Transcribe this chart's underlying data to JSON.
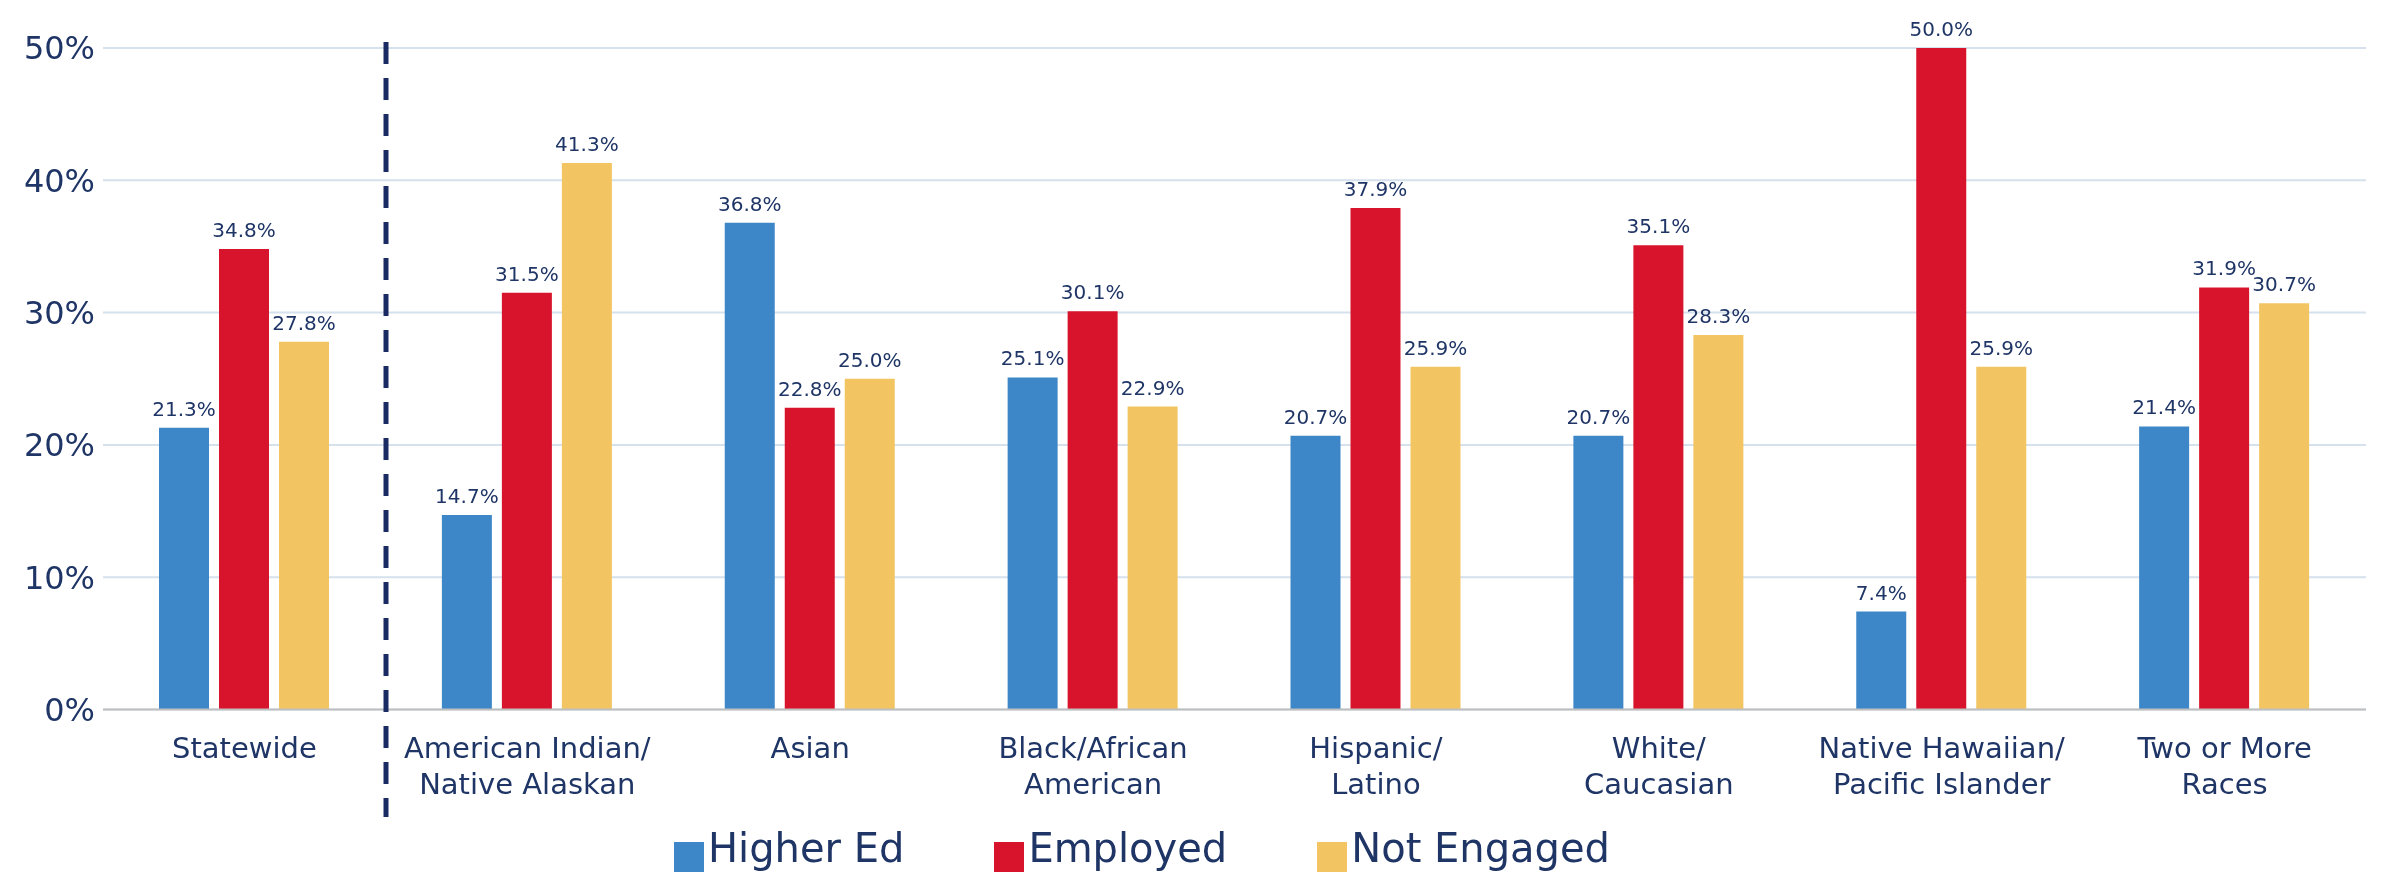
{
  "chart_data": {
    "type": "bar",
    "categories": [
      "Statewide",
      "American Indian/\nNative Alaskan",
      "Asian",
      "Black/African\nAmerican",
      "Hispanic/\nLatino",
      "White/\nCaucasian",
      "Native Hawaiian/\nPacific Islander",
      "Two or More\nRaces"
    ],
    "series": [
      {
        "name": "Higher Ed",
        "color": "#3d87c8",
        "values": [
          21.3,
          14.7,
          36.8,
          25.1,
          20.7,
          20.7,
          7.4,
          21.4
        ],
        "value_labels": [
          "21.3%",
          "14.7%",
          "36.8%",
          "25.1%",
          "20.7%",
          "20.7%",
          "7.4%",
          "21.4%"
        ]
      },
      {
        "name": "Employed",
        "color": "#d7142b",
        "values": [
          34.8,
          31.5,
          22.8,
          30.1,
          37.9,
          35.1,
          50.0,
          31.9
        ],
        "value_labels": [
          "34.8%",
          "31.5%",
          "22.8%",
          "30.1%",
          "37.9%",
          "35.1%",
          "50.0%",
          "31.9%"
        ]
      },
      {
        "name": "Not Engaged",
        "color": "#f2c562",
        "values": [
          27.8,
          41.3,
          25.0,
          22.9,
          25.9,
          28.3,
          25.9,
          30.7
        ],
        "value_labels": [
          "27.8%",
          "41.3%",
          "25.0%",
          "22.9%",
          "25.9%",
          "28.3%",
          "25.9%",
          "30.7%"
        ]
      }
    ],
    "ylim": [
      0,
      50
    ],
    "yticks": [
      {
        "value": 0,
        "label": "0%"
      },
      {
        "value": 10,
        "label": "10%"
      },
      {
        "value": 20,
        "label": "20%"
      },
      {
        "value": 30,
        "label": "30%"
      },
      {
        "value": 40,
        "label": "40%"
      },
      {
        "value": 50,
        "label": "50%"
      }
    ],
    "grid": "y",
    "legend": "bottom"
  }
}
